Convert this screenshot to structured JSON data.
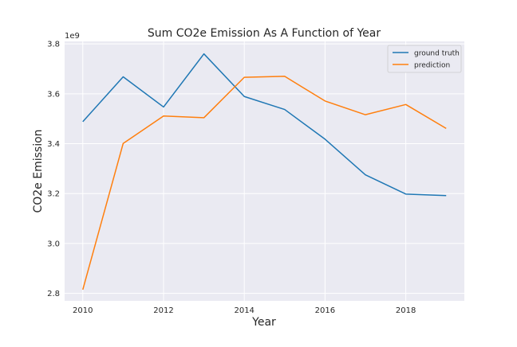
{
  "chart_data": {
    "type": "line",
    "title": "Sum CO2e Emission As A Function of Year",
    "xlabel": "Year",
    "ylabel": "CO2e Emission",
    "y_offset_label": "1e9",
    "x": [
      2010,
      2011,
      2012,
      2013,
      2014,
      2015,
      2016,
      2017,
      2018,
      2019
    ],
    "xlim": [
      2009.55,
      2019.45
    ],
    "ylim": [
      2.77,
      3.81
    ],
    "x_ticks": [
      2010,
      2012,
      2014,
      2016,
      2018
    ],
    "x_tick_labels": [
      "2010",
      "2012",
      "2014",
      "2016",
      "2018"
    ],
    "y_ticks": [
      2.8,
      3.0,
      3.2,
      3.4,
      3.6,
      3.8
    ],
    "y_tick_labels": [
      "2.8",
      "3.0",
      "3.2",
      "3.4",
      "3.6",
      "3.8"
    ],
    "grid": true,
    "legend_position": "top-right",
    "series": [
      {
        "name": "ground truth",
        "color": "#1f77b4",
        "values": [
          3.488,
          3.668,
          3.547,
          3.76,
          3.589,
          3.537,
          3.418,
          3.275,
          3.198,
          3.192
        ]
      },
      {
        "name": "prediction",
        "color": "#ff7f0e",
        "values": [
          2.815,
          3.401,
          3.511,
          3.504,
          3.666,
          3.67,
          3.571,
          3.516,
          3.557,
          3.461
        ]
      }
    ]
  }
}
